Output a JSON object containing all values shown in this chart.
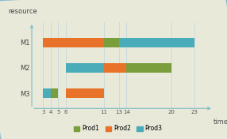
{
  "resources": [
    "M1",
    "M2",
    "M3"
  ],
  "bars": {
    "M1": [
      {
        "start": 3,
        "end": 11,
        "product": "Prod2",
        "color": "#E8722A"
      },
      {
        "start": 11,
        "end": 13,
        "product": "Prod1",
        "color": "#7A9E3B"
      },
      {
        "start": 13,
        "end": 23,
        "product": "Prod3",
        "color": "#4AACB8"
      }
    ],
    "M2": [
      {
        "start": 6,
        "end": 11,
        "product": "Prod3",
        "color": "#4AACB8"
      },
      {
        "start": 11,
        "end": 14,
        "product": "Prod2",
        "color": "#E8722A"
      },
      {
        "start": 14,
        "end": 20,
        "product": "Prod1",
        "color": "#7A9E3B"
      }
    ],
    "M3": [
      {
        "start": 3,
        "end": 4,
        "product": "Prod3",
        "color": "#4AACB8"
      },
      {
        "start": 4,
        "end": 5,
        "product": "Prod1",
        "color": "#7A9E3B"
      },
      {
        "start": 6,
        "end": 11,
        "product": "Prod2",
        "color": "#E8722A"
      }
    ]
  },
  "xticks": [
    3,
    4,
    5,
    6,
    11,
    13,
    14,
    20,
    23
  ],
  "xlim": [
    1.5,
    25.5
  ],
  "ylim": [
    0.4,
    3.8
  ],
  "xlabel": "time",
  "ylabel": "resource",
  "bar_height": 0.38,
  "legend": [
    {
      "label": "Prod1",
      "color": "#7A9E3B"
    },
    {
      "label": "Prod2",
      "color": "#E8722A"
    },
    {
      "label": "Prod3",
      "color": "#4AACB8"
    }
  ],
  "bg_color": "#E9E9DA",
  "grid_color": "#B8D4DC",
  "ytick_labels": [
    "M3",
    "M2",
    "M1"
  ],
  "ytick_positions": [
    1,
    2,
    3
  ],
  "resource_ymap": {
    "M1": 3,
    "M2": 2,
    "M3": 1
  },
  "axis_color": "#7ABBC8",
  "tick_fontsize": 5.0,
  "label_fontsize": 6.0
}
